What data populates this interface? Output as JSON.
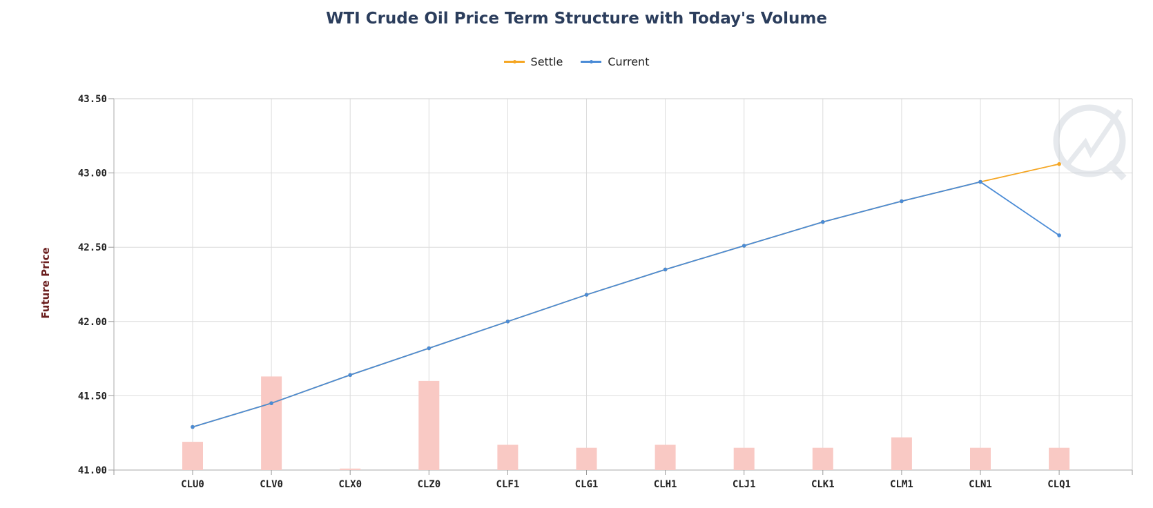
{
  "chart_data": {
    "type": "line",
    "title": "WTI Crude Oil Price Term Structure with Today's Volume",
    "ylabel": "Future Price",
    "xlabel": "",
    "ylim": [
      41.0,
      43.5
    ],
    "yticks": [
      "43.50",
      "43.00",
      "42.50",
      "42.00",
      "41.50",
      "41.00"
    ],
    "grid": true,
    "legend_position": "top-center",
    "categories": [
      "CLU0",
      "CLV0",
      "CLX0",
      "CLZ0",
      "CLF1",
      "CLG1",
      "CLH1",
      "CLJ1",
      "CLK1",
      "CLM1",
      "CLN1",
      "CLQ1"
    ],
    "series": [
      {
        "name": "Settle",
        "color": "#f5a623",
        "values": [
          41.29,
          41.45,
          41.64,
          41.82,
          42.0,
          42.18,
          42.35,
          42.51,
          42.67,
          42.81,
          42.94,
          43.06
        ]
      },
      {
        "name": "Current",
        "color": "#4a8bd6",
        "values": [
          41.29,
          41.45,
          41.64,
          41.82,
          42.0,
          42.18,
          42.35,
          42.51,
          42.67,
          42.81,
          42.94,
          42.58
        ]
      }
    ],
    "volume_bars": {
      "color": "#f9c9c4",
      "values": [
        41.19,
        41.63,
        41.01,
        41.6,
        41.17,
        41.15,
        41.17,
        41.15,
        41.15,
        41.22,
        41.15,
        41.15
      ]
    }
  }
}
